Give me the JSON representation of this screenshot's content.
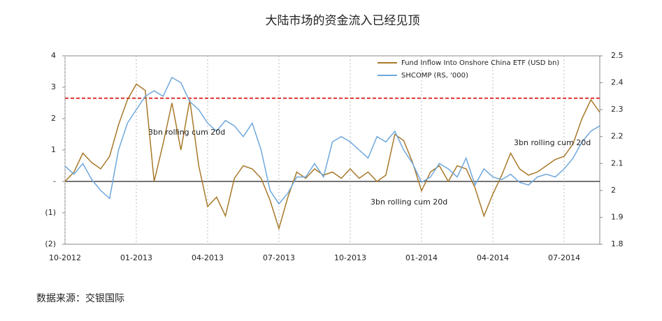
{
  "chart_data": {
    "type": "line",
    "title": "大陆市场的资金流入已经见顶",
    "source": "数据来源：交银国际",
    "categories": [
      "10-2012",
      null,
      null,
      null,
      null,
      null,
      null,
      null,
      "01-2013",
      null,
      null,
      null,
      null,
      null,
      null,
      null,
      "04-2013",
      null,
      null,
      null,
      null,
      null,
      null,
      null,
      "07-2013",
      null,
      null,
      null,
      null,
      null,
      null,
      null,
      "10-2013",
      null,
      null,
      null,
      null,
      null,
      null,
      null,
      "01-2014",
      null,
      null,
      null,
      null,
      null,
      null,
      null,
      "04-2014",
      null,
      null,
      null,
      null,
      null,
      null,
      null,
      "07-2014",
      null,
      null,
      null,
      null
    ],
    "series": [
      {
        "name": "Fund Inflow Into Onshore China ETF (USD bn)",
        "color": "#a8792a",
        "axis": "y",
        "values": [
          0,
          0.3,
          0.9,
          0.6,
          0.4,
          0.8,
          1.8,
          2.6,
          3.1,
          2.9,
          0,
          1.2,
          2.5,
          1.0,
          2.6,
          0.5,
          -0.8,
          -0.5,
          -1.1,
          0.1,
          0.5,
          0.4,
          0.1,
          -0.6,
          -1.5,
          -0.5,
          0.3,
          0.1,
          0.4,
          0.2,
          0.3,
          0.1,
          0.4,
          0.1,
          0.3,
          0,
          0.2,
          1.5,
          1.3,
          0.6,
          -0.3,
          0.3,
          0.5,
          0,
          0.5,
          0.4,
          -0.2,
          -1.1,
          -0.4,
          0.2,
          0.9,
          0.4,
          0.2,
          0.3,
          0.5,
          0.7,
          0.8,
          1.2,
          2.0,
          2.6,
          2.2
        ]
      },
      {
        "name": "SHCOMP (RS, '000)",
        "color": "#6fa8dc",
        "axis": "y2",
        "values": [
          2.09,
          2.06,
          2.1,
          2.04,
          2.0,
          1.97,
          2.15,
          2.25,
          2.3,
          2.35,
          2.37,
          2.35,
          2.42,
          2.4,
          2.33,
          2.3,
          2.25,
          2.22,
          2.26,
          2.24,
          2.2,
          2.25,
          2.15,
          2.0,
          1.95,
          1.99,
          2.05,
          2.05,
          2.1,
          2.05,
          2.18,
          2.2,
          2.18,
          2.15,
          2.12,
          2.2,
          2.18,
          2.22,
          2.15,
          2.1,
          2.03,
          2.05,
          2.1,
          2.08,
          2.05,
          2.12,
          2.02,
          2.08,
          2.05,
          2.04,
          2.06,
          2.03,
          2.02,
          2.05,
          2.06,
          2.05,
          2.08,
          2.12,
          2.18,
          2.22,
          2.24
        ]
      }
    ],
    "ylim": [
      -2,
      4
    ],
    "yticks": [
      {
        "value": -2,
        "label": "(2)"
      },
      {
        "value": -1,
        "label": "(1)"
      },
      {
        "value": 0,
        "label": "-"
      },
      1,
      2,
      3,
      4
    ],
    "y2lim": [
      1.8,
      2.5
    ],
    "y2ticks": [
      1.8,
      1.9,
      2.0,
      2.1,
      2.2,
      2.3,
      2.4,
      2.5
    ],
    "reference_line": {
      "value": 2.65,
      "color": "#e03030"
    },
    "annotations": [
      "3bn rolling cum 20d",
      "3bn rolling cum 20d",
      "3bn rolling cum 20d"
    ],
    "grid": true
  }
}
